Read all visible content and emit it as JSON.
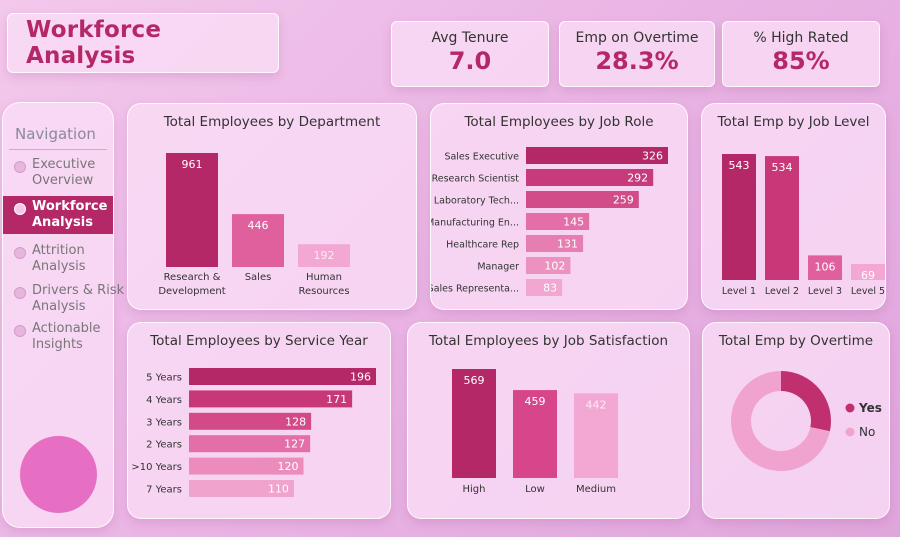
{
  "page_title": "Workforce Analysis",
  "kpis": [
    {
      "label": "Avg Tenure",
      "value": "7.0"
    },
    {
      "label": "Emp on Overtime",
      "value": "28.3%"
    },
    {
      "label": "% High Rated",
      "value": "85%"
    }
  ],
  "navigation": {
    "title": "Navigation",
    "items": [
      {
        "line1": "Executive",
        "line2": "Overview"
      },
      {
        "line1": "Workforce",
        "line2": "Analysis"
      },
      {
        "line1": "Attrition",
        "line2": "Analysis"
      },
      {
        "line1": "Drivers & Risk",
        "line2": "Analysis"
      },
      {
        "line1": "Actionable",
        "line2": "Insights"
      }
    ],
    "active_index": 1
  },
  "chart_data": [
    {
      "id": "dept",
      "type": "bar",
      "title": "Total Employees by Department",
      "categories": [
        [
          "Research &",
          "Development"
        ],
        [
          "Sales"
        ],
        [
          "Human",
          "Resources"
        ]
      ],
      "values": [
        961,
        446,
        192
      ],
      "colors": [
        "#b52868",
        "#e0609e",
        "#f3a8d3"
      ]
    },
    {
      "id": "role",
      "type": "bar",
      "orientation": "horizontal",
      "title": "Total Employees by Job Role",
      "categories": [
        "Sales Executive",
        "Research Scientist",
        "Laboratory Tech...",
        "Manufacturing En...",
        "Healthcare Rep",
        "Manager",
        "Sales Representa..."
      ],
      "values": [
        326,
        292,
        259,
        145,
        131,
        102,
        83
      ],
      "colors": [
        "#b52868",
        "#c73a7b",
        "#d24c8a",
        "#e46fa8",
        "#e77eb2",
        "#ec92c0",
        "#f1a7cf"
      ]
    },
    {
      "id": "level",
      "type": "bar",
      "title": "Total Emp by Job Level",
      "categories": [
        "Level 1",
        "Level 2",
        "Level 3",
        "Level 5"
      ],
      "values": [
        543,
        534,
        106,
        69
      ],
      "colors": [
        "#b52868",
        "#c83879",
        "#e0609e",
        "#f3a8d3"
      ]
    },
    {
      "id": "service",
      "type": "bar",
      "orientation": "horizontal",
      "title": "Total Employees by Service Year",
      "categories": [
        "5 Years",
        "4 Years",
        "3 Years",
        "2 Years",
        ">10 Years",
        "7 Years"
      ],
      "values": [
        196,
        171,
        128,
        127,
        120,
        110
      ],
      "colors": [
        "#b52868",
        "#c83879",
        "#d44a88",
        "#e46fa8",
        "#ec8cbd",
        "#f0a3cc"
      ]
    },
    {
      "id": "satisfaction",
      "type": "bar",
      "title": "Total Employees by Job Satisfaction",
      "categories": [
        "High",
        "Low",
        "Medium"
      ],
      "values": [
        569,
        459,
        442
      ],
      "colors": [
        "#b52868",
        "#d7468a",
        "#f3a8d3"
      ]
    },
    {
      "id": "overtime",
      "type": "pie",
      "title": "Total Emp by Overtime",
      "categories": [
        "Yes",
        "No"
      ],
      "values": [
        28.3,
        71.7
      ],
      "colors": [
        "#c0306f",
        "#f1a3d0"
      ]
    }
  ]
}
